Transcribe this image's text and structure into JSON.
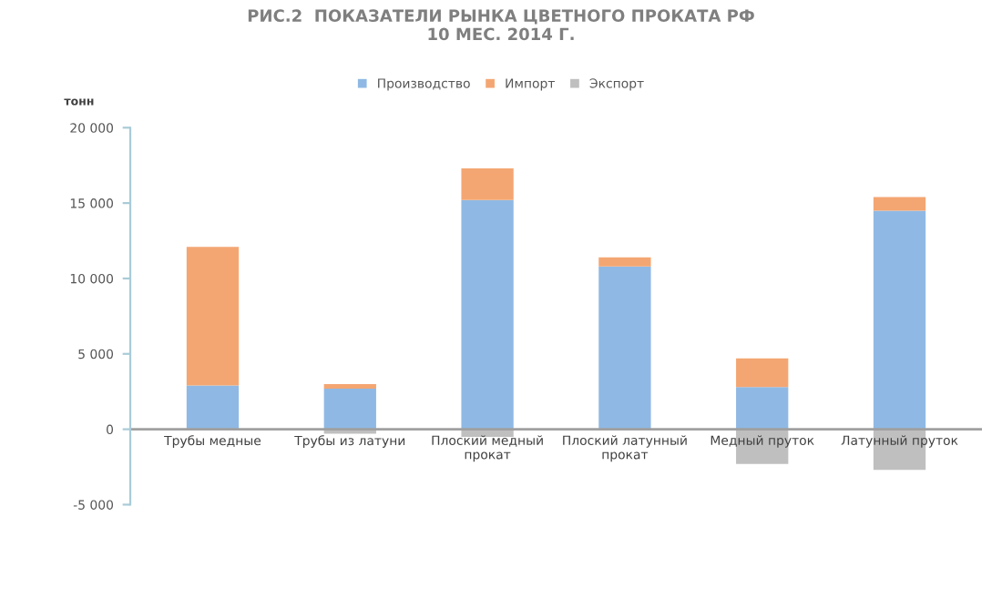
{
  "chart_data": {
    "type": "bar",
    "title": "РИС.2  ПОКАЗАТЕЛИ РЫНКА ЦВЕТНОГО ПРОКАТА РФ\n10 МЕС. 2014 Г.",
    "ylabel": "тонн",
    "categories": [
      "Трубы медные",
      "Трубы из латуни",
      "Плоский медный\nпрокат",
      "Плоский латунный\nпрокат",
      "Медный пруток",
      "Латунный пруток"
    ],
    "stacked": true,
    "series": [
      {
        "name": "Производство",
        "color": "#8fb9e4",
        "values": [
          2900,
          2700,
          15200,
          10800,
          2800,
          14500
        ]
      },
      {
        "name": "Импорт",
        "color": "#f4a672",
        "values": [
          9200,
          300,
          2100,
          600,
          1900,
          900
        ]
      },
      {
        "name": "Экспорт",
        "color": "#bfbfbf",
        "values": [
          0,
          -300,
          -500,
          0,
          -2300,
          -2700
        ]
      }
    ],
    "ylim": [
      -5000,
      20000
    ],
    "yticks": [
      {
        "value": -5000,
        "label": "-5 000"
      },
      0,
      {
        "value": 5000,
        "label": "5 000"
      },
      {
        "value": 10000,
        "label": "10 000"
      },
      {
        "value": 15000,
        "label": "15 000"
      },
      {
        "value": 20000,
        "label": "20 000"
      }
    ],
    "legend": "top",
    "grid": false
  }
}
